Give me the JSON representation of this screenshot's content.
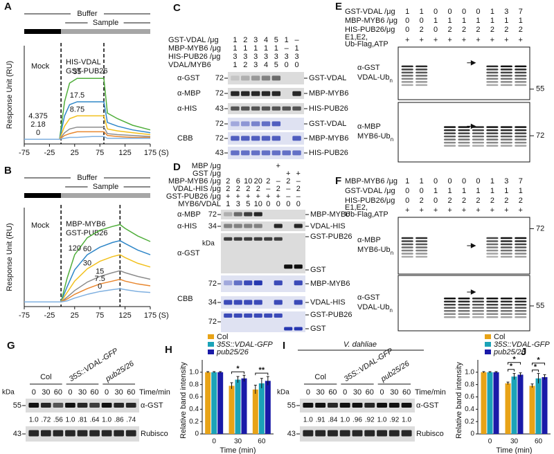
{
  "chart_data": [
    {
      "type": "line",
      "panel_label": "A",
      "header_top": "Buffer",
      "header_sample": "Sample",
      "mock_label": "Mock",
      "analyte_label": [
        "HIS-VDAL",
        "GST-PUB26"
      ],
      "ylabel": "Response Unit (RU)",
      "xlabel": "(S)",
      "x": [
        -75,
        -5,
        5,
        15,
        30,
        60,
        83,
        90,
        110,
        140,
        175
      ],
      "xlim": [
        -75,
        175
      ],
      "xticks": [
        -75,
        -25,
        25,
        75,
        125,
        175
      ],
      "ylim": [
        -5,
        100
      ],
      "injection": [
        -2,
        83
      ],
      "series": [
        {
          "name": "35",
          "color": "#4fae3a",
          "values": [
            0,
            0,
            40,
            60,
            65,
            65,
            65,
            28,
            22,
            15,
            10
          ]
        },
        {
          "name": "17.5",
          "color": "#2e86c8",
          "values": [
            0,
            0,
            25,
            37,
            40,
            40,
            40,
            18,
            14,
            10,
            7
          ]
        },
        {
          "name": "8.75",
          "color": "#f2c01c",
          "values": [
            0,
            0,
            14,
            22,
            25,
            25,
            25,
            11,
            9,
            7,
            5
          ]
        },
        {
          "name": "4.375",
          "color": "#8c8c8c",
          "values": [
            0,
            0,
            7,
            11,
            13,
            13,
            13,
            6,
            5,
            4,
            3
          ]
        },
        {
          "name": "2.18",
          "color": "#e8862e",
          "values": [
            0,
            0,
            4,
            6,
            8,
            8,
            8,
            4,
            3,
            2,
            2
          ]
        },
        {
          "name": "0",
          "color": "#7fb0e0",
          "values": [
            0,
            0,
            1,
            2,
            2,
            3,
            3,
            1,
            1,
            1,
            1
          ]
        }
      ]
    },
    {
      "type": "line",
      "panel_label": "B",
      "header_top": "Buffer",
      "header_sample": "Sample",
      "mock_label": "Mock",
      "analyte_label": [
        "MBP-MYB6",
        "GST-PUB26"
      ],
      "ylabel": "Response Unit (RU)",
      "xlabel": "(S)",
      "x": [
        -75,
        -2,
        10,
        25,
        50,
        75,
        100,
        115,
        125,
        150,
        175
      ],
      "xlim": [
        -75,
        175
      ],
      "xticks": [
        -75,
        -25,
        25,
        75,
        125,
        175
      ],
      "ylim": [
        -5,
        100
      ],
      "injection": [
        -2,
        115
      ],
      "series": [
        {
          "name": "120",
          "color": "#4fae3a",
          "values": [
            0,
            0,
            25,
            50,
            68,
            76,
            80,
            82,
            78,
            70,
            64
          ]
        },
        {
          "name": "60",
          "color": "#2e86c8",
          "values": [
            0,
            0,
            16,
            34,
            50,
            58,
            63,
            65,
            62,
            55,
            50
          ]
        },
        {
          "name": "30",
          "color": "#f2c01c",
          "values": [
            0,
            0,
            10,
            22,
            35,
            43,
            48,
            50,
            47,
            41,
            37
          ]
        },
        {
          "name": "15",
          "color": "#8c8c8c",
          "values": [
            0,
            0,
            5,
            12,
            21,
            27,
            31,
            33,
            31,
            27,
            24
          ]
        },
        {
          "name": "7.5",
          "color": "#e8862e",
          "values": [
            0,
            0,
            3,
            8,
            14,
            19,
            22,
            24,
            22,
            19,
            17
          ]
        },
        {
          "name": "0",
          "color": "#7fb0e0",
          "values": [
            0,
            0,
            1,
            4,
            8,
            11,
            13,
            14,
            13,
            11,
            10
          ]
        }
      ]
    },
    {
      "type": "bar",
      "panel_label": "H",
      "categories": [
        "0",
        "30",
        "60"
      ],
      "xlabel": "Time (min)",
      "ylabel": "Relative band intensity",
      "ylim": [
        0,
        1.2
      ],
      "yticks": [
        0,
        0.2,
        0.4,
        0.6,
        0.8,
        {
          "value": 1,
          "label": "1.0"
        }
      ],
      "series": [
        {
          "name": "Col",
          "color": "#e8a317",
          "values": [
            1,
            0.78,
            0.72
          ],
          "errors": [
            0.01,
            0.05,
            0.07
          ]
        },
        {
          "name": "35S::VDAL-GFP",
          "italic": true,
          "color": "#1ba3b8",
          "values": [
            1,
            0.88,
            0.82
          ],
          "errors": [
            0.01,
            0.05,
            0.08
          ]
        },
        {
          "name": "pub25/26",
          "italic": true,
          "color": "#1a1aa8",
          "values": [
            1,
            0.9,
            0.86
          ],
          "errors": [
            0.01,
            0.05,
            0.07
          ]
        }
      ],
      "significance": [
        null,
        [
          "*"
        ],
        [
          "**"
        ]
      ]
    },
    {
      "type": "bar",
      "panel_label": "J",
      "categories": [
        "0",
        "30",
        "60"
      ],
      "xlabel": "Time (min)",
      "ylabel": "Relative band intensity",
      "ylim": [
        0,
        1.2
      ],
      "yticks": [
        0,
        0.2,
        0.4,
        0.6,
        0.8,
        {
          "value": 1,
          "label": "1.0"
        }
      ],
      "series": [
        {
          "name": "Col",
          "color": "#e8a317",
          "values": [
            1,
            0.82,
            0.78
          ],
          "errors": [
            0.01,
            0.02,
            0.03
          ]
        },
        {
          "name": "35S::VDAL-GFP",
          "italic": true,
          "color": "#1ba3b8",
          "values": [
            1,
            0.93,
            0.9
          ],
          "errors": [
            0.01,
            0.05,
            0.08
          ]
        },
        {
          "name": "pub25/26",
          "italic": true,
          "color": "#1a1aa8",
          "values": [
            1,
            0.96,
            0.92
          ],
          "errors": [
            0.01,
            0.03,
            0.04
          ]
        }
      ],
      "significance": [
        null,
        [
          "*",
          "*"
        ],
        [
          "*",
          "*"
        ]
      ]
    }
  ],
  "panels": {
    "C": {
      "label": "C",
      "stain": "CBB",
      "rows": [
        {
          "name": "GST-VDAL /μg",
          "lanes": [
            "1",
            "2",
            "3",
            "4",
            "5",
            "1",
            "–"
          ]
        },
        {
          "name": "MBP-MYB6 /μg",
          "lanes": [
            "1",
            "1",
            "1",
            "1",
            "1",
            "–",
            "1"
          ]
        },
        {
          "name": "HIS-PUB26 /μg",
          "lanes": [
            "3",
            "3",
            "3",
            "3",
            "3",
            "3",
            "3"
          ]
        },
        {
          "name": "VDAL/MYB6",
          "lanes": [
            "1",
            "2",
            "3",
            "4",
            "5",
            "0",
            "0"
          ]
        }
      ],
      "strips": [
        {
          "antibody": "α-GST",
          "mw": "72",
          "bands": [
            "GST-VDAL"
          ]
        },
        {
          "antibody": "α-MBP",
          "mw": "72",
          "bands": [
            "MBP-MYB6"
          ]
        },
        {
          "antibody": "α-HIS",
          "mw": "43",
          "bands": [
            "HIS-PUB26"
          ]
        },
        {
          "mw": "72",
          "bands": [
            "GST-VDAL"
          ]
        },
        {
          "mw": "72",
          "bands": [
            "MBP-MYB6"
          ]
        },
        {
          "mw": "43",
          "bands": [
            "HIS-PUB26"
          ]
        }
      ]
    },
    "D": {
      "label": "D",
      "stain": "CBB",
      "unit": "kDa",
      "rows": [
        {
          "name": "MBP /μg",
          "lanes": [
            null,
            null,
            null,
            null,
            null,
            "+",
            null,
            null
          ]
        },
        {
          "name": "GST /μg",
          "lanes": [
            null,
            null,
            null,
            null,
            null,
            null,
            "+",
            "+"
          ]
        },
        {
          "name": "MBP-MYB6 /μg",
          "lanes": [
            "2",
            "6",
            "10",
            "20",
            "2",
            "–",
            "2",
            "–"
          ]
        },
        {
          "name": "VDAL-HIS /μg",
          "lanes": [
            "2",
            "2",
            "2",
            "2",
            "–",
            "2",
            "–",
            "2"
          ]
        },
        {
          "name": "GST-PUB26 /μg",
          "lanes": [
            "+",
            "+",
            "+",
            "+",
            "+",
            "+",
            "–",
            "–"
          ]
        },
        {
          "name": "MYB6/VDAL",
          "lanes": [
            "1",
            "3",
            "5",
            "10",
            "0",
            "0",
            "0",
            "0"
          ]
        }
      ],
      "strips": [
        {
          "antibody": "α-MBP",
          "mw": "72",
          "bands": [
            "MBP-MYB6"
          ]
        },
        {
          "antibody": "α-HIS",
          "mw": "34",
          "bands": [
            "VDAL-HIS"
          ]
        },
        {
          "antibody": "α-GST",
          "bands": [
            "GST-PUB26",
            "GST"
          ]
        },
        {
          "mw": "72",
          "bands": [
            "MBP-MYB6"
          ]
        },
        {
          "mw": "34",
          "bands": [
            "VDAL-HIS"
          ]
        },
        {
          "mw": "72",
          "bands": [
            "GST-PUB26",
            "GST"
          ]
        }
      ]
    },
    "E": {
      "label": "E",
      "rows": [
        {
          "name": "GST-VDAL /μg",
          "lanes": [
            "1",
            "1",
            "0",
            "0",
            "0",
            "0",
            "1",
            "3",
            "7"
          ]
        },
        {
          "name": "MBP-MYB6 /μg",
          "lanes": [
            "0",
            "0",
            "1",
            "1",
            "1",
            "1",
            "1",
            "1",
            "1"
          ]
        },
        {
          "name": "HIS-PUB26/μg",
          "lanes": [
            "0",
            "2",
            "0",
            "2",
            "2",
            "2",
            "2",
            "2",
            "2"
          ]
        },
        {
          "name": [
            "E1,E2,",
            "Ub-Flag,ATP"
          ],
          "lanes": [
            "+",
            "+",
            "+",
            "+",
            "+",
            "+",
            "+",
            "+",
            "+"
          ]
        }
      ],
      "strips": [
        {
          "antibody": "α-GST",
          "target": {
            "text": "VDAL-Ub",
            "sub": "n"
          },
          "mw": "55"
        },
        {
          "antibody": "α-MBP",
          "target": {
            "text": "MYB6-Ub",
            "sub": "n"
          },
          "mw": "72"
        }
      ]
    },
    "F": {
      "label": "F",
      "rows": [
        {
          "name": "MBP-MYB6 /μg",
          "lanes": [
            "1",
            "1",
            "0",
            "0",
            "0",
            "0",
            "1",
            "3",
            "7"
          ]
        },
        {
          "name": "GST-VDAL /μg",
          "lanes": [
            "0",
            "0",
            "1",
            "1",
            "1",
            "1",
            "1",
            "1",
            "1"
          ]
        },
        {
          "name": "HIS-PUB26/μg",
          "lanes": [
            "0",
            "2",
            "0",
            "2",
            "2",
            "2",
            "2",
            "2",
            "2"
          ]
        },
        {
          "name": [
            "E1,E2,",
            "Ub-Flag,ATP"
          ],
          "lanes": [
            "+",
            "+",
            "+",
            "+",
            "+",
            "+",
            "+",
            "+",
            "+"
          ]
        }
      ],
      "strips": [
        {
          "antibody": "α-MBP",
          "target": {
            "text": "MYB6-Ub",
            "sub": "n"
          },
          "mw": "72"
        },
        {
          "antibody": "α-GST",
          "target": {
            "text": "VDAL-Ub",
            "sub": "n"
          },
          "mw": "55"
        }
      ]
    },
    "G": {
      "label": "G",
      "unit": "kDa",
      "time_label": "Time/min",
      "groups": [
        {
          "name": "Col"
        },
        {
          "name": "35S::VDAL-GFP",
          "italic": true
        },
        {
          "name": "pub25/26",
          "italic": true
        }
      ],
      "lanes": [
        "0",
        "30",
        "60",
        "0",
        "30",
        "60",
        "0",
        "30",
        "60"
      ],
      "strips": [
        {
          "mw": "55",
          "antibody": "α-GST"
        },
        {
          "mw": "43",
          "antibody": "Rubisco"
        }
      ],
      "quant": [
        "1.0",
        ".72",
        ".56",
        "1.0",
        ".81",
        ".64",
        "1.0",
        ".86",
        ".74"
      ]
    },
    "I": {
      "label": "I",
      "pathogen": "V. dahliae",
      "unit": "kDa",
      "time_label": "Time/min",
      "groups": [
        {
          "name": "Col"
        },
        {
          "name": "35S::VDAL-GFP",
          "italic": true
        },
        {
          "name": "pub25/26",
          "italic": true
        }
      ],
      "lanes": [
        "0",
        "30",
        "60",
        "0",
        "30",
        "60",
        "0",
        "30",
        "60"
      ],
      "strips": [
        {
          "mw": "55",
          "antibody": "α-GST"
        },
        {
          "mw": "43",
          "antibody": "Rubisco"
        }
      ],
      "quant": [
        "1.0",
        ".91",
        ".84",
        "1.0",
        ".96",
        ".92",
        "1.0",
        ".92",
        "1.0"
      ]
    }
  }
}
